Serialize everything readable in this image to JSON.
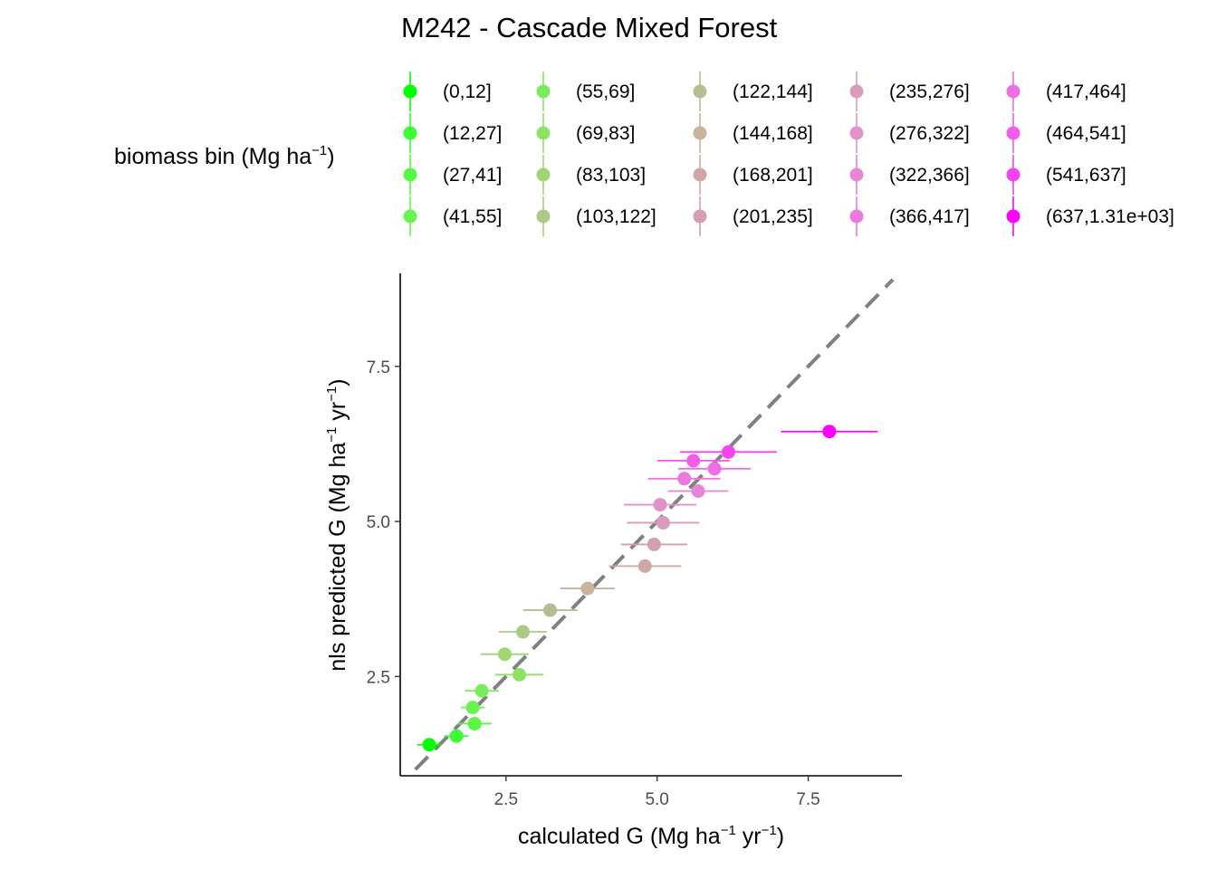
{
  "chart_data": {
    "type": "scatter",
    "title": "M242 - Cascade Mixed Forest",
    "xlabel": {
      "pre": "calculated G (Mg ha",
      "sup1": "−1",
      "mid": " yr",
      "sup2": "−1",
      "post": ")"
    },
    "ylabel": {
      "pre": "nls predicted G (Mg ha",
      "sup1": "−1",
      "mid": " yr",
      "sup2": "−1",
      "post": ")"
    },
    "xlim": [
      0.75,
      9.05
    ],
    "ylim": [
      0.9,
      9.0
    ],
    "xticks": [
      {
        "value": 2.5,
        "label": "2.5"
      },
      {
        "value": 5.0,
        "label": "5.0"
      },
      {
        "value": 7.5,
        "label": "7.5"
      }
    ],
    "yticks": [
      {
        "value": 2.5,
        "label": "2.5"
      },
      {
        "value": 5.0,
        "label": "5.0"
      },
      {
        "value": 7.5,
        "label": "7.5"
      }
    ],
    "grid": false,
    "reference_line": {
      "type": "1:1",
      "style": "dashed",
      "color": "#808080",
      "from": 1.0,
      "to": 8.9
    },
    "legend": {
      "title": {
        "pre": "biomass bin (Mg ha",
        "sup": "−1",
        "post": ")"
      },
      "placement": "top",
      "columns": 5
    },
    "series": [
      {
        "name": "(0,12]",
        "color": "#00ff00",
        "x": 1.23,
        "y": 1.4,
        "xerr": 0.2
      },
      {
        "name": "(12,27]",
        "color": "#3cfc34",
        "x": 1.68,
        "y": 1.54,
        "xerr": 0.2
      },
      {
        "name": "(27,41]",
        "color": "#56f844",
        "x": 1.98,
        "y": 1.74,
        "xerr": 0.28
      },
      {
        "name": "(41,55]",
        "color": "#68f350",
        "x": 1.95,
        "y": 2.0,
        "xerr": 0.2
      },
      {
        "name": "(55,69]",
        "color": "#7aeb5c",
        "x": 2.1,
        "y": 2.27,
        "xerr": 0.28
      },
      {
        "name": "(69,83]",
        "color": "#8ee366",
        "x": 2.72,
        "y": 2.53,
        "xerr": 0.4
      },
      {
        "name": "(83,103]",
        "color": "#a0d574",
        "x": 2.48,
        "y": 2.86,
        "xerr": 0.4
      },
      {
        "name": "(103,122]",
        "color": "#adc987",
        "x": 2.78,
        "y": 3.22,
        "xerr": 0.4
      },
      {
        "name": "(122,144]",
        "color": "#b7bd91",
        "x": 3.23,
        "y": 3.57,
        "xerr": 0.45
      },
      {
        "name": "(144,168]",
        "color": "#c8b39c",
        "x": 3.85,
        "y": 3.92,
        "xerr": 0.45
      },
      {
        "name": "(168,201]",
        "color": "#cfa8a6",
        "x": 4.8,
        "y": 4.28,
        "xerr": 0.6
      },
      {
        "name": "(201,235]",
        "color": "#d39fb1",
        "x": 4.95,
        "y": 4.63,
        "xerr": 0.55
      },
      {
        "name": "(235,276]",
        "color": "#db9bbd",
        "x": 5.1,
        "y": 4.98,
        "xerr": 0.6
      },
      {
        "name": "(276,322]",
        "color": "#e192c9",
        "x": 5.05,
        "y": 5.27,
        "xerr": 0.6
      },
      {
        "name": "(322,366]",
        "color": "#e686d4",
        "x": 5.68,
        "y": 5.49,
        "xerr": 0.5
      },
      {
        "name": "(366,417]",
        "color": "#ec79dc",
        "x": 5.45,
        "y": 5.69,
        "xerr": 0.6
      },
      {
        "name": "(417,464]",
        "color": "#ee6ee3",
        "x": 5.95,
        "y": 5.85,
        "xerr": 0.6
      },
      {
        "name": "(464,541]",
        "color": "#f25ee9",
        "x": 5.6,
        "y": 5.98,
        "xerr": 0.6
      },
      {
        "name": "(541,637]",
        "color": "#f544ef",
        "x": 6.18,
        "y": 6.12,
        "xerr": 0.8
      },
      {
        "name": "(637,1.31e+03]",
        "color": "#ff00ff",
        "x": 7.85,
        "y": 6.45,
        "xerr": 0.8
      }
    ]
  }
}
